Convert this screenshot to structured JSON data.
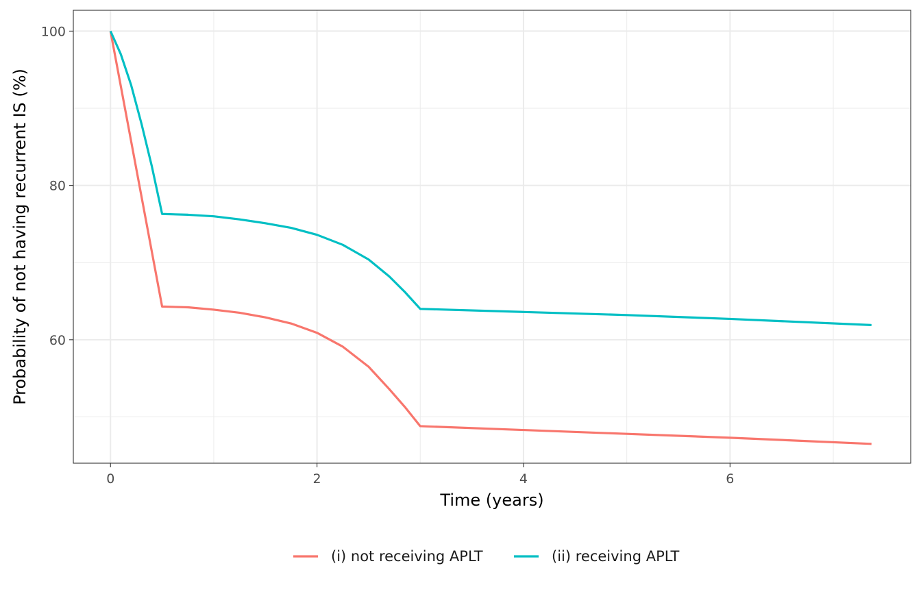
{
  "chart_data": {
    "type": "line",
    "title": "",
    "xlabel": "Time (years)",
    "ylabel": "Probability of not having recurrent IS (%)",
    "xlim": [
      -0.36,
      7.75
    ],
    "ylim": [
      44.0,
      102.7
    ],
    "x_ticks": [
      0,
      2,
      4,
      6
    ],
    "x_tick_labels": [
      "0",
      "2",
      "4",
      "6"
    ],
    "x_minor_ticks": [
      1,
      3,
      5,
      7
    ],
    "y_ticks": [
      60,
      80,
      100
    ],
    "y_tick_labels": [
      "60",
      "80",
      "100"
    ],
    "y_minor_ticks": [
      50,
      70,
      90
    ],
    "grid": true,
    "legend_position": "bottom",
    "series": [
      {
        "name": "(i) not receiving APLT",
        "color": "#F8766D",
        "points": [
          [
            0,
            100
          ],
          [
            0.5,
            64.3
          ],
          [
            0.75,
            64.2
          ],
          [
            1.0,
            63.9
          ],
          [
            1.25,
            63.5
          ],
          [
            1.5,
            62.9
          ],
          [
            1.75,
            62.1
          ],
          [
            2.0,
            60.9
          ],
          [
            2.25,
            59.1
          ],
          [
            2.5,
            56.5
          ],
          [
            2.7,
            53.6
          ],
          [
            2.85,
            51.3
          ],
          [
            3.0,
            48.8
          ],
          [
            4.0,
            48.3
          ],
          [
            5.0,
            47.8
          ],
          [
            6.0,
            47.3
          ],
          [
            7.37,
            46.5
          ]
        ]
      },
      {
        "name": "(ii) receiving APLT",
        "color": "#00BFC4",
        "points": [
          [
            0,
            100
          ],
          [
            0.1,
            97.0
          ],
          [
            0.2,
            93.0
          ],
          [
            0.3,
            88.0
          ],
          [
            0.4,
            82.5
          ],
          [
            0.5,
            76.3
          ],
          [
            0.75,
            76.2
          ],
          [
            1.0,
            76.0
          ],
          [
            1.25,
            75.6
          ],
          [
            1.5,
            75.1
          ],
          [
            1.75,
            74.5
          ],
          [
            2.0,
            73.6
          ],
          [
            2.25,
            72.3
          ],
          [
            2.5,
            70.4
          ],
          [
            2.7,
            68.2
          ],
          [
            2.85,
            66.2
          ],
          [
            3.0,
            64.0
          ],
          [
            4.0,
            63.6
          ],
          [
            5.0,
            63.2
          ],
          [
            6.0,
            62.7
          ],
          [
            7.37,
            61.9
          ]
        ]
      }
    ]
  }
}
